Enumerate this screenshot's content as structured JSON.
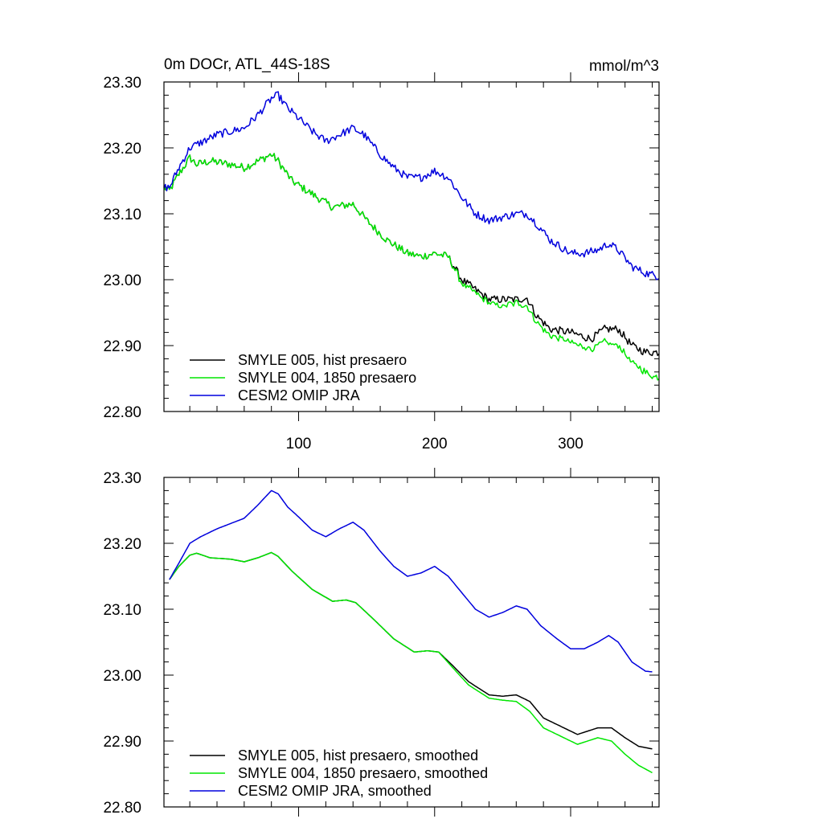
{
  "chart_data": [
    {
      "type": "line",
      "title": "0m DOCr, ATL_44S-18S",
      "units": "mmol/m^3",
      "xlabel": "",
      "ylabel": "",
      "xlim": [
        1,
        365
      ],
      "ylim": [
        22.8,
        23.3
      ],
      "xticks": [
        100,
        200,
        300
      ],
      "xtick_labels": [
        "100",
        "200",
        "300"
      ],
      "yticks": [
        22.8,
        22.9,
        23.0,
        23.1,
        23.2,
        23.3
      ],
      "ytick_labels": [
        "22.80",
        "22.90",
        "23.00",
        "23.10",
        "23.20",
        "23.30"
      ],
      "legend_position": "bottom-left",
      "noise_amplitude": 0.006,
      "series": [
        {
          "name": "SMYLE 005, hist presaero",
          "color": "#000000",
          "keypoints": [
            [
              1,
              23.14
            ],
            [
              5,
              23.135
            ],
            [
              12,
              23.16
            ],
            [
              20,
              23.185
            ],
            [
              25,
              23.175
            ],
            [
              35,
              23.18
            ],
            [
              50,
              23.175
            ],
            [
              60,
              23.17
            ],
            [
              70,
              23.18
            ],
            [
              80,
              23.19
            ],
            [
              85,
              23.18
            ],
            [
              95,
              23.15
            ],
            [
              110,
              23.13
            ],
            [
              125,
              23.11
            ],
            [
              140,
              23.115
            ],
            [
              150,
              23.09
            ],
            [
              165,
              23.06
            ],
            [
              180,
              23.04
            ],
            [
              190,
              23.035
            ],
            [
              200,
              23.04
            ],
            [
              210,
              23.035
            ],
            [
              220,
              23.0
            ],
            [
              230,
              22.985
            ],
            [
              240,
              22.97
            ],
            [
              250,
              22.97
            ],
            [
              260,
              22.97
            ],
            [
              268,
              22.972
            ],
            [
              275,
              22.945
            ],
            [
              285,
              22.925
            ],
            [
              300,
              22.92
            ],
            [
              315,
              22.91
            ],
            [
              325,
              22.925
            ],
            [
              335,
              22.925
            ],
            [
              345,
              22.9
            ],
            [
              355,
              22.89
            ],
            [
              365,
              22.89
            ]
          ]
        },
        {
          "name": "SMYLE 004, 1850 presaero",
          "color": "#00e600",
          "keypoints": [
            [
              1,
              23.14
            ],
            [
              5,
              23.135
            ],
            [
              12,
              23.16
            ],
            [
              20,
              23.185
            ],
            [
              25,
              23.175
            ],
            [
              35,
              23.18
            ],
            [
              50,
              23.175
            ],
            [
              60,
              23.17
            ],
            [
              70,
              23.18
            ],
            [
              80,
              23.19
            ],
            [
              85,
              23.18
            ],
            [
              95,
              23.15
            ],
            [
              110,
              23.13
            ],
            [
              125,
              23.11
            ],
            [
              140,
              23.115
            ],
            [
              150,
              23.09
            ],
            [
              165,
              23.06
            ],
            [
              180,
              23.04
            ],
            [
              190,
              23.035
            ],
            [
              200,
              23.04
            ],
            [
              210,
              23.035
            ],
            [
              220,
              22.995
            ],
            [
              230,
              22.98
            ],
            [
              240,
              22.965
            ],
            [
              250,
              22.96
            ],
            [
              260,
              22.965
            ],
            [
              268,
              22.96
            ],
            [
              275,
              22.935
            ],
            [
              285,
              22.915
            ],
            [
              300,
              22.905
            ],
            [
              315,
              22.895
            ],
            [
              325,
              22.905
            ],
            [
              335,
              22.9
            ],
            [
              345,
              22.875
            ],
            [
              355,
              22.86
            ],
            [
              365,
              22.85
            ]
          ]
        },
        {
          "name": "CESM2 OMIP JRA",
          "color": "#0000dd",
          "keypoints": [
            [
              1,
              23.14
            ],
            [
              5,
              23.14
            ],
            [
              12,
              23.17
            ],
            [
              20,
              23.2
            ],
            [
              30,
              23.21
            ],
            [
              40,
              23.22
            ],
            [
              50,
              23.225
            ],
            [
              60,
              23.23
            ],
            [
              70,
              23.25
            ],
            [
              80,
              23.275
            ],
            [
              85,
              23.28
            ],
            [
              92,
              23.26
            ],
            [
              100,
              23.245
            ],
            [
              110,
              23.225
            ],
            [
              120,
              23.21
            ],
            [
              130,
              23.22
            ],
            [
              140,
              23.23
            ],
            [
              148,
              23.22
            ],
            [
              160,
              23.19
            ],
            [
              170,
              23.17
            ],
            [
              180,
              23.155
            ],
            [
              190,
              23.155
            ],
            [
              200,
              23.165
            ],
            [
              210,
              23.155
            ],
            [
              220,
              23.125
            ],
            [
              230,
              23.1
            ],
            [
              240,
              23.09
            ],
            [
              250,
              23.095
            ],
            [
              260,
              23.1
            ],
            [
              268,
              23.1
            ],
            [
              275,
              23.085
            ],
            [
              285,
              23.06
            ],
            [
              300,
              23.04
            ],
            [
              310,
              23.04
            ],
            [
              320,
              23.045
            ],
            [
              328,
              23.055
            ],
            [
              335,
              23.045
            ],
            [
              345,
              23.02
            ],
            [
              355,
              23.01
            ],
            [
              365,
              23.005
            ]
          ]
        }
      ]
    },
    {
      "type": "line",
      "title": "",
      "units": "",
      "xlabel": "",
      "ylabel": "",
      "xlim": [
        1,
        365
      ],
      "ylim": [
        22.8,
        23.3
      ],
      "xticks": [
        100,
        200,
        300
      ],
      "xtick_labels": [],
      "yticks": [
        22.8,
        22.9,
        23.0,
        23.1,
        23.2,
        23.3
      ],
      "ytick_labels": [
        "22.80",
        "22.90",
        "23.00",
        "23.10",
        "23.20",
        "23.30"
      ],
      "legend_position": "bottom-left",
      "noise_amplitude": 0,
      "series": [
        {
          "name": "SMYLE 005, hist presaero, smoothed",
          "color": "#000000",
          "keypoints": [
            [
              5,
              23.145
            ],
            [
              12,
              23.165
            ],
            [
              20,
              23.182
            ],
            [
              25,
              23.185
            ],
            [
              35,
              23.178
            ],
            [
              50,
              23.176
            ],
            [
              60,
              23.172
            ],
            [
              70,
              23.178
            ],
            [
              80,
              23.186
            ],
            [
              85,
              23.18
            ],
            [
              95,
              23.158
            ],
            [
              110,
              23.13
            ],
            [
              125,
              23.112
            ],
            [
              135,
              23.114
            ],
            [
              142,
              23.11
            ],
            [
              155,
              23.085
            ],
            [
              170,
              23.055
            ],
            [
              185,
              23.035
            ],
            [
              195,
              23.037
            ],
            [
              203,
              23.035
            ],
            [
              213,
              23.015
            ],
            [
              225,
              22.99
            ],
            [
              240,
              22.97
            ],
            [
              250,
              22.968
            ],
            [
              260,
              22.97
            ],
            [
              270,
              22.96
            ],
            [
              280,
              22.935
            ],
            [
              290,
              22.925
            ],
            [
              305,
              22.91
            ],
            [
              320,
              22.92
            ],
            [
              330,
              22.92
            ],
            [
              340,
              22.905
            ],
            [
              350,
              22.892
            ],
            [
              360,
              22.888
            ]
          ]
        },
        {
          "name": "SMYLE 004, 1850 presaero, smoothed",
          "color": "#00e600",
          "keypoints": [
            [
              5,
              23.145
            ],
            [
              12,
              23.165
            ],
            [
              20,
              23.182
            ],
            [
              25,
              23.185
            ],
            [
              35,
              23.178
            ],
            [
              50,
              23.176
            ],
            [
              60,
              23.172
            ],
            [
              70,
              23.178
            ],
            [
              80,
              23.186
            ],
            [
              85,
              23.18
            ],
            [
              95,
              23.158
            ],
            [
              110,
              23.13
            ],
            [
              125,
              23.112
            ],
            [
              135,
              23.114
            ],
            [
              142,
              23.11
            ],
            [
              155,
              23.085
            ],
            [
              170,
              23.055
            ],
            [
              185,
              23.035
            ],
            [
              195,
              23.037
            ],
            [
              203,
              23.035
            ],
            [
              213,
              23.012
            ],
            [
              225,
              22.985
            ],
            [
              240,
              22.965
            ],
            [
              250,
              22.962
            ],
            [
              260,
              22.96
            ],
            [
              270,
              22.945
            ],
            [
              280,
              22.92
            ],
            [
              290,
              22.91
            ],
            [
              305,
              22.895
            ],
            [
              320,
              22.905
            ],
            [
              330,
              22.9
            ],
            [
              340,
              22.88
            ],
            [
              350,
              22.863
            ],
            [
              360,
              22.852
            ]
          ]
        },
        {
          "name": "CESM2 OMIP JRA, smoothed",
          "color": "#0000dd",
          "keypoints": [
            [
              5,
              23.145
            ],
            [
              12,
              23.17
            ],
            [
              20,
              23.2
            ],
            [
              28,
              23.21
            ],
            [
              40,
              23.222
            ],
            [
              50,
              23.23
            ],
            [
              60,
              23.238
            ],
            [
              70,
              23.258
            ],
            [
              80,
              23.28
            ],
            [
              85,
              23.275
            ],
            [
              92,
              23.255
            ],
            [
              100,
              23.24
            ],
            [
              110,
              23.22
            ],
            [
              120,
              23.21
            ],
            [
              130,
              23.222
            ],
            [
              140,
              23.232
            ],
            [
              148,
              23.22
            ],
            [
              160,
              23.188
            ],
            [
              170,
              23.165
            ],
            [
              180,
              23.15
            ],
            [
              190,
              23.155
            ],
            [
              200,
              23.165
            ],
            [
              210,
              23.15
            ],
            [
              220,
              23.125
            ],
            [
              230,
              23.1
            ],
            [
              240,
              23.088
            ],
            [
              250,
              23.095
            ],
            [
              260,
              23.105
            ],
            [
              268,
              23.1
            ],
            [
              278,
              23.075
            ],
            [
              290,
              23.055
            ],
            [
              300,
              23.04
            ],
            [
              310,
              23.04
            ],
            [
              320,
              23.05
            ],
            [
              328,
              23.06
            ],
            [
              335,
              23.05
            ],
            [
              345,
              23.02
            ],
            [
              355,
              23.006
            ],
            [
              360,
              23.005
            ]
          ]
        }
      ]
    }
  ]
}
